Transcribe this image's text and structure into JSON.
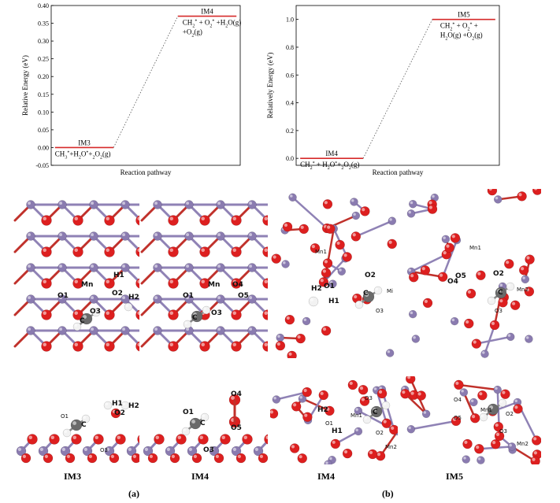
{
  "chart_data": [
    {
      "type": "line",
      "x": [
        "IM3",
        "IM4"
      ],
      "series": [
        {
          "values": [
            0.0,
            0.37
          ]
        }
      ],
      "ylabel": "Relative Energy (eV)",
      "xlabel": "Reaction pathway",
      "ylim": [
        -0.05,
        0.4
      ],
      "yticks": [
        "-0.05",
        "0.00",
        "0.05",
        "0.10",
        "0.15",
        "0.20",
        "0.25",
        "0.30",
        "0.35",
        "0.40"
      ],
      "levels": [
        {
          "name": "IM3",
          "species": "CH3*+H2O*+2O2(g)",
          "energy": 0.0
        },
        {
          "name": "IM4",
          "species": "CH2* + O2* +H2O(g) +O2(g)",
          "energy": 0.37
        }
      ],
      "line_color": "#d62a2a",
      "connector": "dotted"
    },
    {
      "type": "line",
      "x": [
        "IM4",
        "IM5"
      ],
      "series": [
        {
          "values": [
            0.0,
            1.0
          ]
        }
      ],
      "ylabel": "Relatively Energy (eV)",
      "xlabel": "Reaction pathway",
      "ylim": [
        -0.05,
        1.1
      ],
      "yticks": [
        "0.0",
        "0.2",
        "0.4",
        "0.6",
        "0.8",
        "1.0"
      ],
      "levels": [
        {
          "name": "IM4",
          "species": "CH2* + H2O*+2O2(g)",
          "energy": 0.0
        },
        {
          "name": "IM5",
          "species": "CH2* + O2* + H2O(g) +O2(g)",
          "energy": 1.0
        }
      ],
      "line_color": "#d62a2a",
      "connector": "dotted"
    }
  ],
  "structures": {
    "panels": [
      {
        "id": "top-im3",
        "labels": [
          "Mn",
          "H1",
          "O1",
          "O2",
          "H2",
          "O3",
          "C"
        ]
      },
      {
        "id": "top-im4",
        "labels": [
          "Mn",
          "O4",
          "O1",
          "O5",
          "O3",
          "C"
        ]
      },
      {
        "id": "top-b-im4",
        "labels": [
          "Mn1",
          "O1",
          "O2",
          "H2",
          "H1",
          "C",
          "O3",
          "Mi"
        ]
      },
      {
        "id": "top-b-im5",
        "labels": [
          "Mn1",
          "O4",
          "O5",
          "O2",
          "C",
          "Mn2",
          "O3"
        ]
      },
      {
        "id": "side-im3",
        "labels": [
          "O1",
          "H1",
          "O2",
          "H2",
          "C",
          "O3"
        ]
      },
      {
        "id": "side-im4",
        "labels": [
          "O4",
          "O1",
          "O5",
          "C",
          "O3"
        ]
      },
      {
        "id": "side-b-im4",
        "labels": [
          "O3",
          "H2",
          "C",
          "O1",
          "H1",
          "Mn1",
          "O2",
          "Mn2"
        ]
      },
      {
        "id": "side-b-im5",
        "labels": [
          "O4",
          "O5",
          "Mn1",
          "O2",
          "O3",
          "Mn2"
        ]
      }
    ],
    "colors": {
      "mn": "#8a7bb0",
      "o": "#dd1f1f",
      "c": "#6a6a6a",
      "h": "#f2f2f2",
      "bond_o": "#c0312b",
      "bond_mn": "#8f82b5"
    }
  },
  "captions": {
    "im3": "IM3",
    "im4_a": "IM4",
    "im4_b": "IM4",
    "im5": "IM5",
    "panel_a": "(a)",
    "panel_b": "(b)"
  }
}
